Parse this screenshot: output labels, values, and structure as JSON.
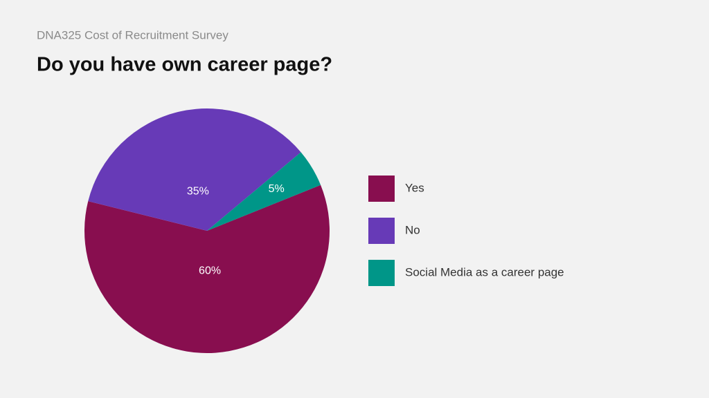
{
  "chart_data": {
    "type": "pie",
    "subtitle": "DNA325 Cost of Recruitment Survey",
    "title": "Do you have own career page?",
    "categories": [
      "Yes",
      "No",
      "Social Media as a career page"
    ],
    "values": [
      60,
      35,
      5
    ],
    "value_labels": [
      "60%",
      "35%",
      "5%"
    ],
    "colors": [
      "#880e4f",
      "#673ab7",
      "#009688"
    ],
    "legend": "right"
  }
}
